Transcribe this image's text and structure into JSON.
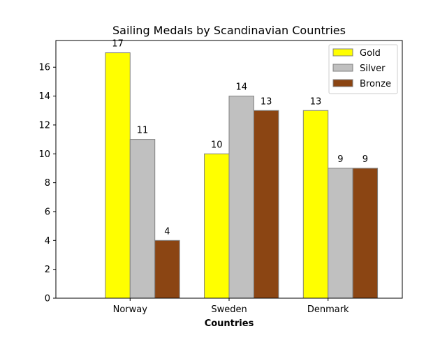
{
  "chart_data": {
    "type": "bar",
    "title": "Sailing Medals by Scandinavian Countries",
    "xlabel": "Countries",
    "ylabel": "",
    "categories": [
      "Norway",
      "Sweden",
      "Denmark"
    ],
    "series": [
      {
        "name": "Gold",
        "values": [
          17,
          10,
          13
        ],
        "color": "#ffff00"
      },
      {
        "name": "Silver",
        "values": [
          11,
          14,
          9
        ],
        "color": "#c0c0c0"
      },
      {
        "name": "Bronze",
        "values": [
          4,
          13,
          9
        ],
        "color": "#8b4513"
      }
    ],
    "ylim": [
      0,
      17.85
    ],
    "yticks": [
      0,
      2,
      4,
      6,
      8,
      10,
      12,
      14,
      16
    ],
    "bar_edge_color": "#808080",
    "grid": false,
    "legend": "top-right",
    "data_labels": true
  }
}
